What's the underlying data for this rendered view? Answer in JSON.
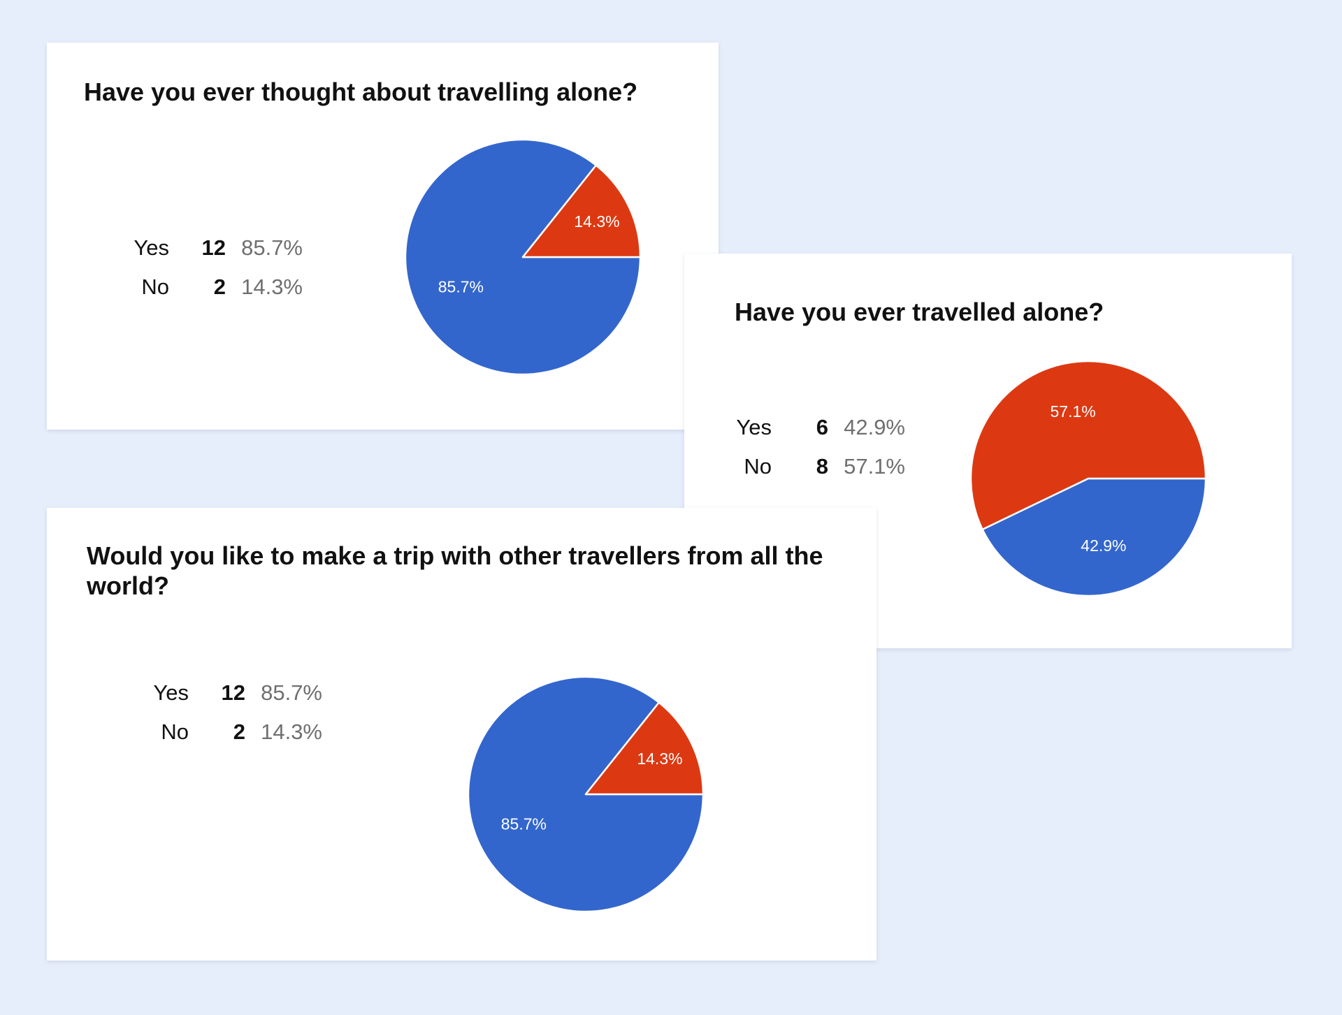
{
  "chart_data": [
    {
      "type": "pie",
      "title": "Have you ever thought about travelling alone?",
      "categories": [
        "Yes",
        "No"
      ],
      "values": [
        12,
        2
      ],
      "percentages": [
        "85.7%",
        "14.3%"
      ],
      "colors": [
        "#3366cc",
        "#dc3912"
      ]
    },
    {
      "type": "pie",
      "title": "Have you ever travelled alone?",
      "categories": [
        "Yes",
        "No"
      ],
      "values": [
        6,
        8
      ],
      "percentages": [
        "42.9%",
        "57.1%"
      ],
      "colors": [
        "#3366cc",
        "#dc3912"
      ]
    },
    {
      "type": "pie",
      "title": "Would you like to make a trip with other travellers from all the world?",
      "categories": [
        "Yes",
        "No"
      ],
      "values": [
        12,
        2
      ],
      "percentages": [
        "85.7%",
        "14.3%"
      ],
      "colors": [
        "#3366cc",
        "#dc3912"
      ]
    }
  ]
}
